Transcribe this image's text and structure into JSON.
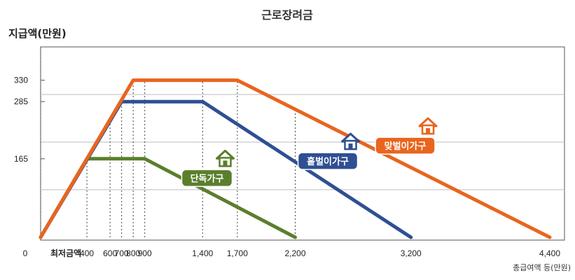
{
  "chart_data": {
    "type": "line",
    "title": "근로장려금",
    "ylabel": "지급액(만원)",
    "xlabel": "총급여액 등(만원)",
    "xlim": [
      0,
      4400
    ],
    "ylim": [
      0,
      400
    ],
    "grid": true,
    "x_ticks": [
      {
        "value": 0,
        "label": "0"
      },
      {
        "value": 400,
        "label": "400"
      },
      {
        "value": 600,
        "label": "600"
      },
      {
        "value": 700,
        "label": "700"
      },
      {
        "value": 800,
        "label": "800"
      },
      {
        "value": 900,
        "label": "900"
      },
      {
        "value": 1400,
        "label": "1,400"
      },
      {
        "value": 1700,
        "label": "1,700"
      },
      {
        "value": 2200,
        "label": "2,200"
      },
      {
        "value": 3200,
        "label": "3,200"
      },
      {
        "value": 4400,
        "label": "4,400"
      }
    ],
    "x_min_wage_label": "최저금액",
    "y_ticks": [
      {
        "value": 165,
        "label": "165"
      },
      {
        "value": 285,
        "label": "285"
      },
      {
        "value": 330,
        "label": "330"
      }
    ],
    "series": [
      {
        "name": "단독가구",
        "color": "#5a7f2c",
        "points": [
          [
            0,
            0
          ],
          [
            400,
            165
          ],
          [
            900,
            165
          ],
          [
            2200,
            0
          ]
        ]
      },
      {
        "name": "홑벌이가구",
        "color": "#2f4f93",
        "points": [
          [
            0,
            0
          ],
          [
            700,
            285
          ],
          [
            1400,
            285
          ],
          [
            3200,
            0
          ]
        ]
      },
      {
        "name": "맞벌이가구",
        "color": "#e8651e",
        "points": [
          [
            0,
            0
          ],
          [
            800,
            330
          ],
          [
            1700,
            330
          ],
          [
            4400,
            0
          ]
        ]
      }
    ],
    "label_icon": "house-icon"
  }
}
